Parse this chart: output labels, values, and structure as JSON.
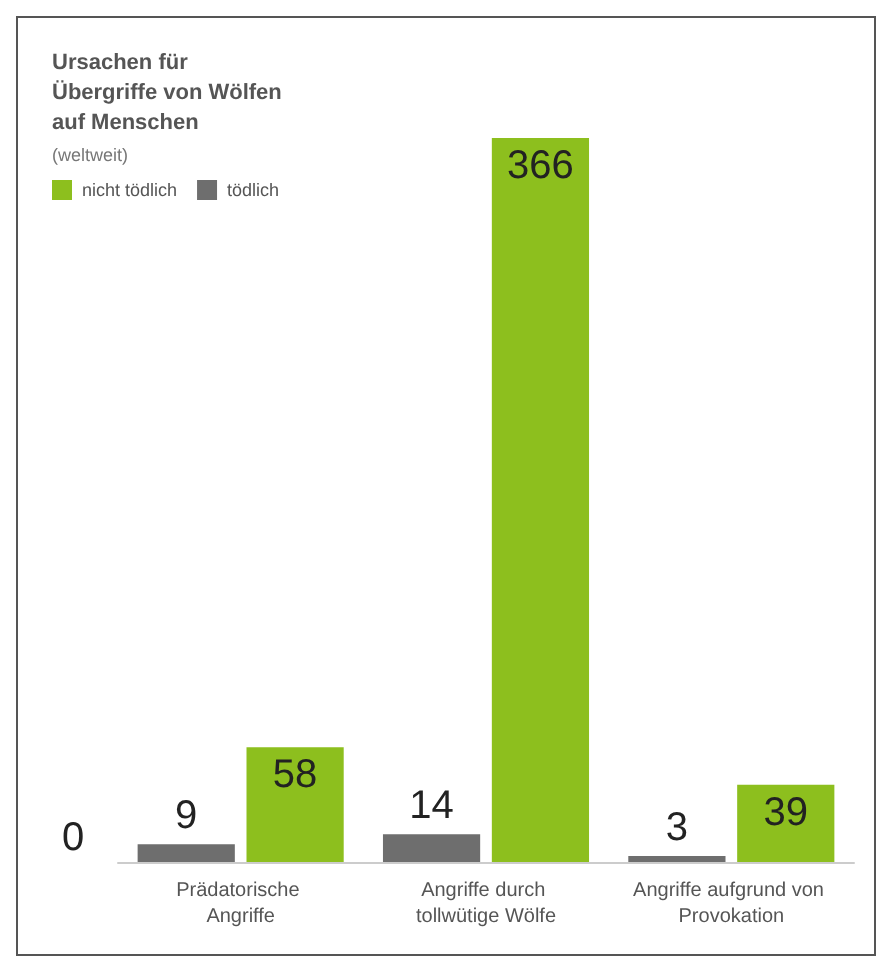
{
  "chart_data": {
    "type": "bar",
    "title": "Ursachen für Übergriffe von Wölfen auf Menschen",
    "subtitle": "(weltweit)",
    "categories": [
      "Prädatorische Angriffe",
      "Angriffe durch tollwütige Wölfe",
      "Angriffe aufgrund von Provokation"
    ],
    "series": [
      {
        "name": "tödlich",
        "color": "#6e6e6e",
        "values": [
          9,
          14,
          3
        ]
      },
      {
        "name": "nicht tödlich",
        "color": "#8dbf1e",
        "values": [
          58,
          366,
          39
        ]
      }
    ],
    "annotations": [
      "0"
    ],
    "data_labels": true,
    "legend": "top left"
  }
}
